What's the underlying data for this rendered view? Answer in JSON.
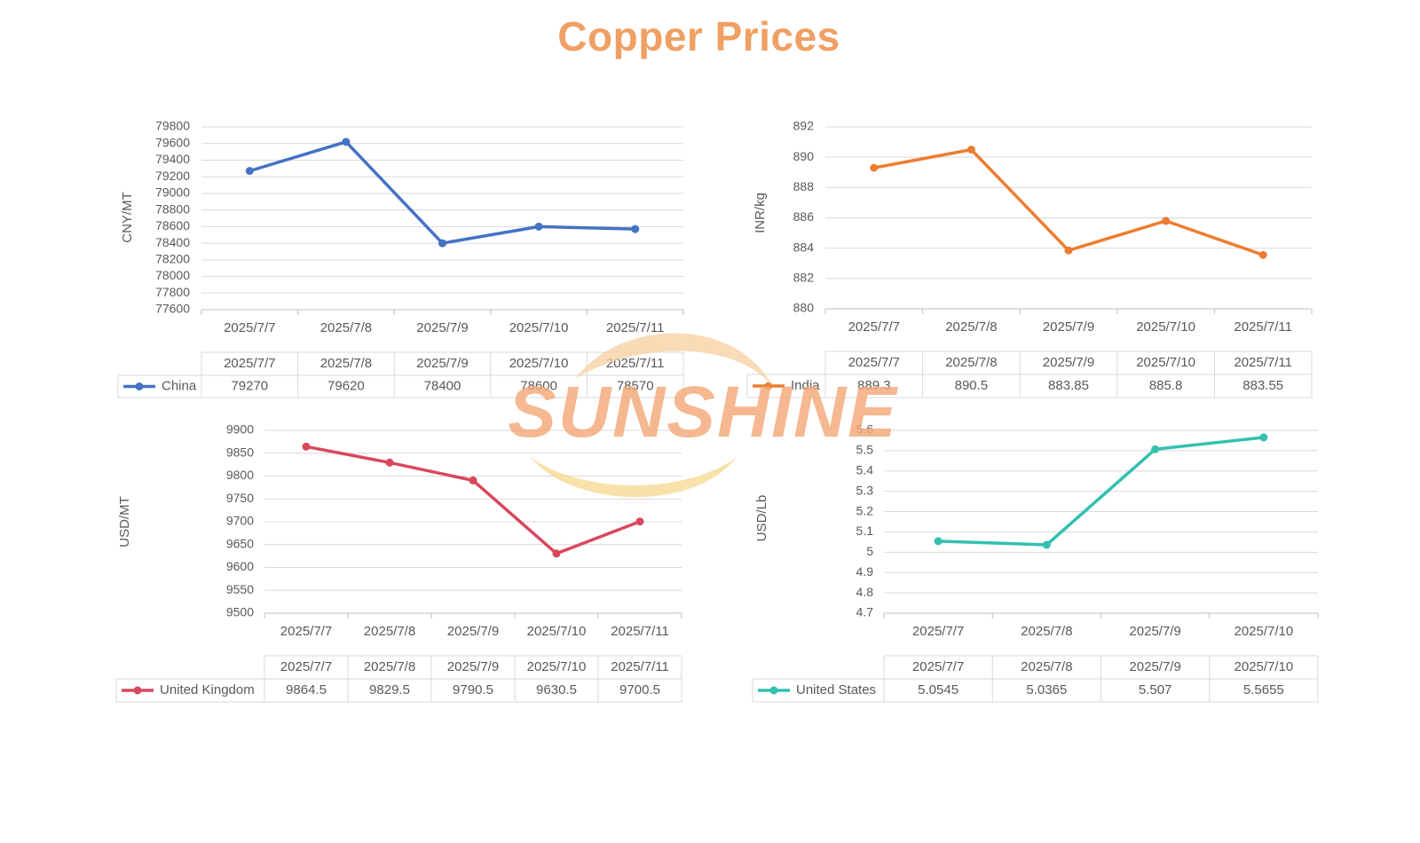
{
  "title": "Copper Prices",
  "watermark": {
    "text": "SUNSHINE",
    "color": "#f4a97a",
    "swoosh_color": "#f8d9a0"
  },
  "colors": {
    "grid": "#d9d9d9",
    "text": "#595959",
    "title": "#f0a064"
  },
  "chart_data": [
    {
      "type": "line",
      "title": "",
      "xlabel": "",
      "ylabel": "CNY/MT",
      "categories": [
        "2025/7/7",
        "2025/7/8",
        "2025/7/9",
        "2025/7/10",
        "2025/7/11"
      ],
      "series": [
        {
          "name": "China",
          "values": [
            79270,
            79620,
            78400,
            78600,
            78570
          ],
          "color": "#4472c4"
        }
      ],
      "ylim": [
        77600,
        79800
      ],
      "yticks": [
        77600,
        77800,
        78000,
        78200,
        78400,
        78600,
        78800,
        79000,
        79200,
        79400,
        79600,
        79800
      ],
      "value_labels": [
        "79270",
        "79620",
        "78400",
        "78600",
        "78570"
      ],
      "grid": true,
      "legend": "data table"
    },
    {
      "type": "line",
      "title": "",
      "xlabel": "",
      "ylabel": "INR/kg",
      "categories": [
        "2025/7/7",
        "2025/7/8",
        "2025/7/9",
        "2025/7/10",
        "2025/7/11"
      ],
      "series": [
        {
          "name": "India",
          "values": [
            889.3,
            890.5,
            883.85,
            885.8,
            883.55
          ],
          "color": "#ed7d31"
        }
      ],
      "ylim": [
        880,
        892
      ],
      "yticks": [
        880,
        882,
        884,
        886,
        888,
        890,
        892
      ],
      "value_labels": [
        "889.3",
        "890.5",
        "883.85",
        "885.8",
        "883.55"
      ],
      "grid": true,
      "legend": "data table"
    },
    {
      "type": "line",
      "title": "",
      "xlabel": "",
      "ylabel": "USD/MT",
      "categories": [
        "2025/7/7",
        "2025/7/8",
        "2025/7/9",
        "2025/7/10",
        "2025/7/11"
      ],
      "series": [
        {
          "name": "United Kingdom",
          "values": [
            9864.5,
            9829.5,
            9790.5,
            9630.5,
            9700.5
          ],
          "color": "#d9475e"
        }
      ],
      "ylim": [
        9500,
        9900
      ],
      "yticks": [
        9500,
        9550,
        9600,
        9650,
        9700,
        9750,
        9800,
        9850,
        9900
      ],
      "value_labels": [
        "9864.5",
        "9829.5",
        "9790.5",
        "9630.5",
        "9700.5"
      ],
      "grid": true,
      "legend": "data table"
    },
    {
      "type": "line",
      "title": "",
      "xlabel": "",
      "ylabel": "USD/Lb",
      "categories": [
        "2025/7/7",
        "2025/7/8",
        "2025/7/9",
        "2025/7/10"
      ],
      "series": [
        {
          "name": "United States",
          "values": [
            5.0545,
            5.0365,
            5.507,
            5.5655
          ],
          "color": "#33c0b0"
        }
      ],
      "ylim": [
        4.7,
        5.6
      ],
      "yticks": [
        4.7,
        4.8,
        4.9,
        5,
        5.1,
        5.2,
        5.3,
        5.4,
        5.5,
        5.6
      ],
      "ytick_labels": [
        "4.7",
        "4.8",
        "4.9",
        "5",
        "5.1",
        "5.2",
        "5.3",
        "5.4",
        "5.5",
        "5.6"
      ],
      "value_labels": [
        "5.0545",
        "5.0365",
        "5.507",
        "5.5655"
      ],
      "grid": true,
      "legend": "data table"
    }
  ]
}
